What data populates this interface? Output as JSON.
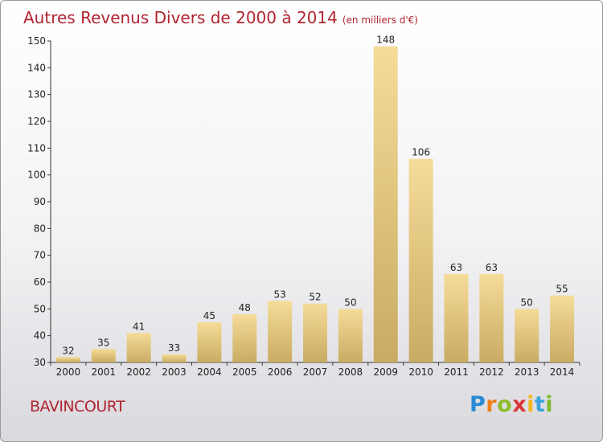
{
  "header": {
    "title": "Autres Revenus Divers de 2000 à 2014",
    "subtitle": "(en milliers d'€)"
  },
  "commune": "BAVINCOURT",
  "logo": {
    "text": "Proxiti"
  },
  "colors": {
    "title": "#b02431",
    "bar_light": "#f5dc98",
    "bar_dark": "#c9ab63"
  },
  "chart_data": {
    "type": "bar",
    "title": "Autres Revenus Divers de 2000 à 2014",
    "subtitle": "(en milliers d'€)",
    "categories": [
      "2000",
      "2001",
      "2002",
      "2003",
      "2004",
      "2005",
      "2006",
      "2007",
      "2008",
      "2009",
      "2010",
      "2011",
      "2012",
      "2013",
      "2014"
    ],
    "values": [
      32,
      35,
      41,
      33,
      45,
      48,
      53,
      52,
      50,
      148,
      106,
      63,
      63,
      50,
      55
    ],
    "ylim": [
      30,
      150
    ],
    "yticks": [
      30,
      40,
      50,
      60,
      70,
      80,
      90,
      100,
      110,
      120,
      130,
      140,
      150
    ],
    "grid": false,
    "data_labels": true
  }
}
